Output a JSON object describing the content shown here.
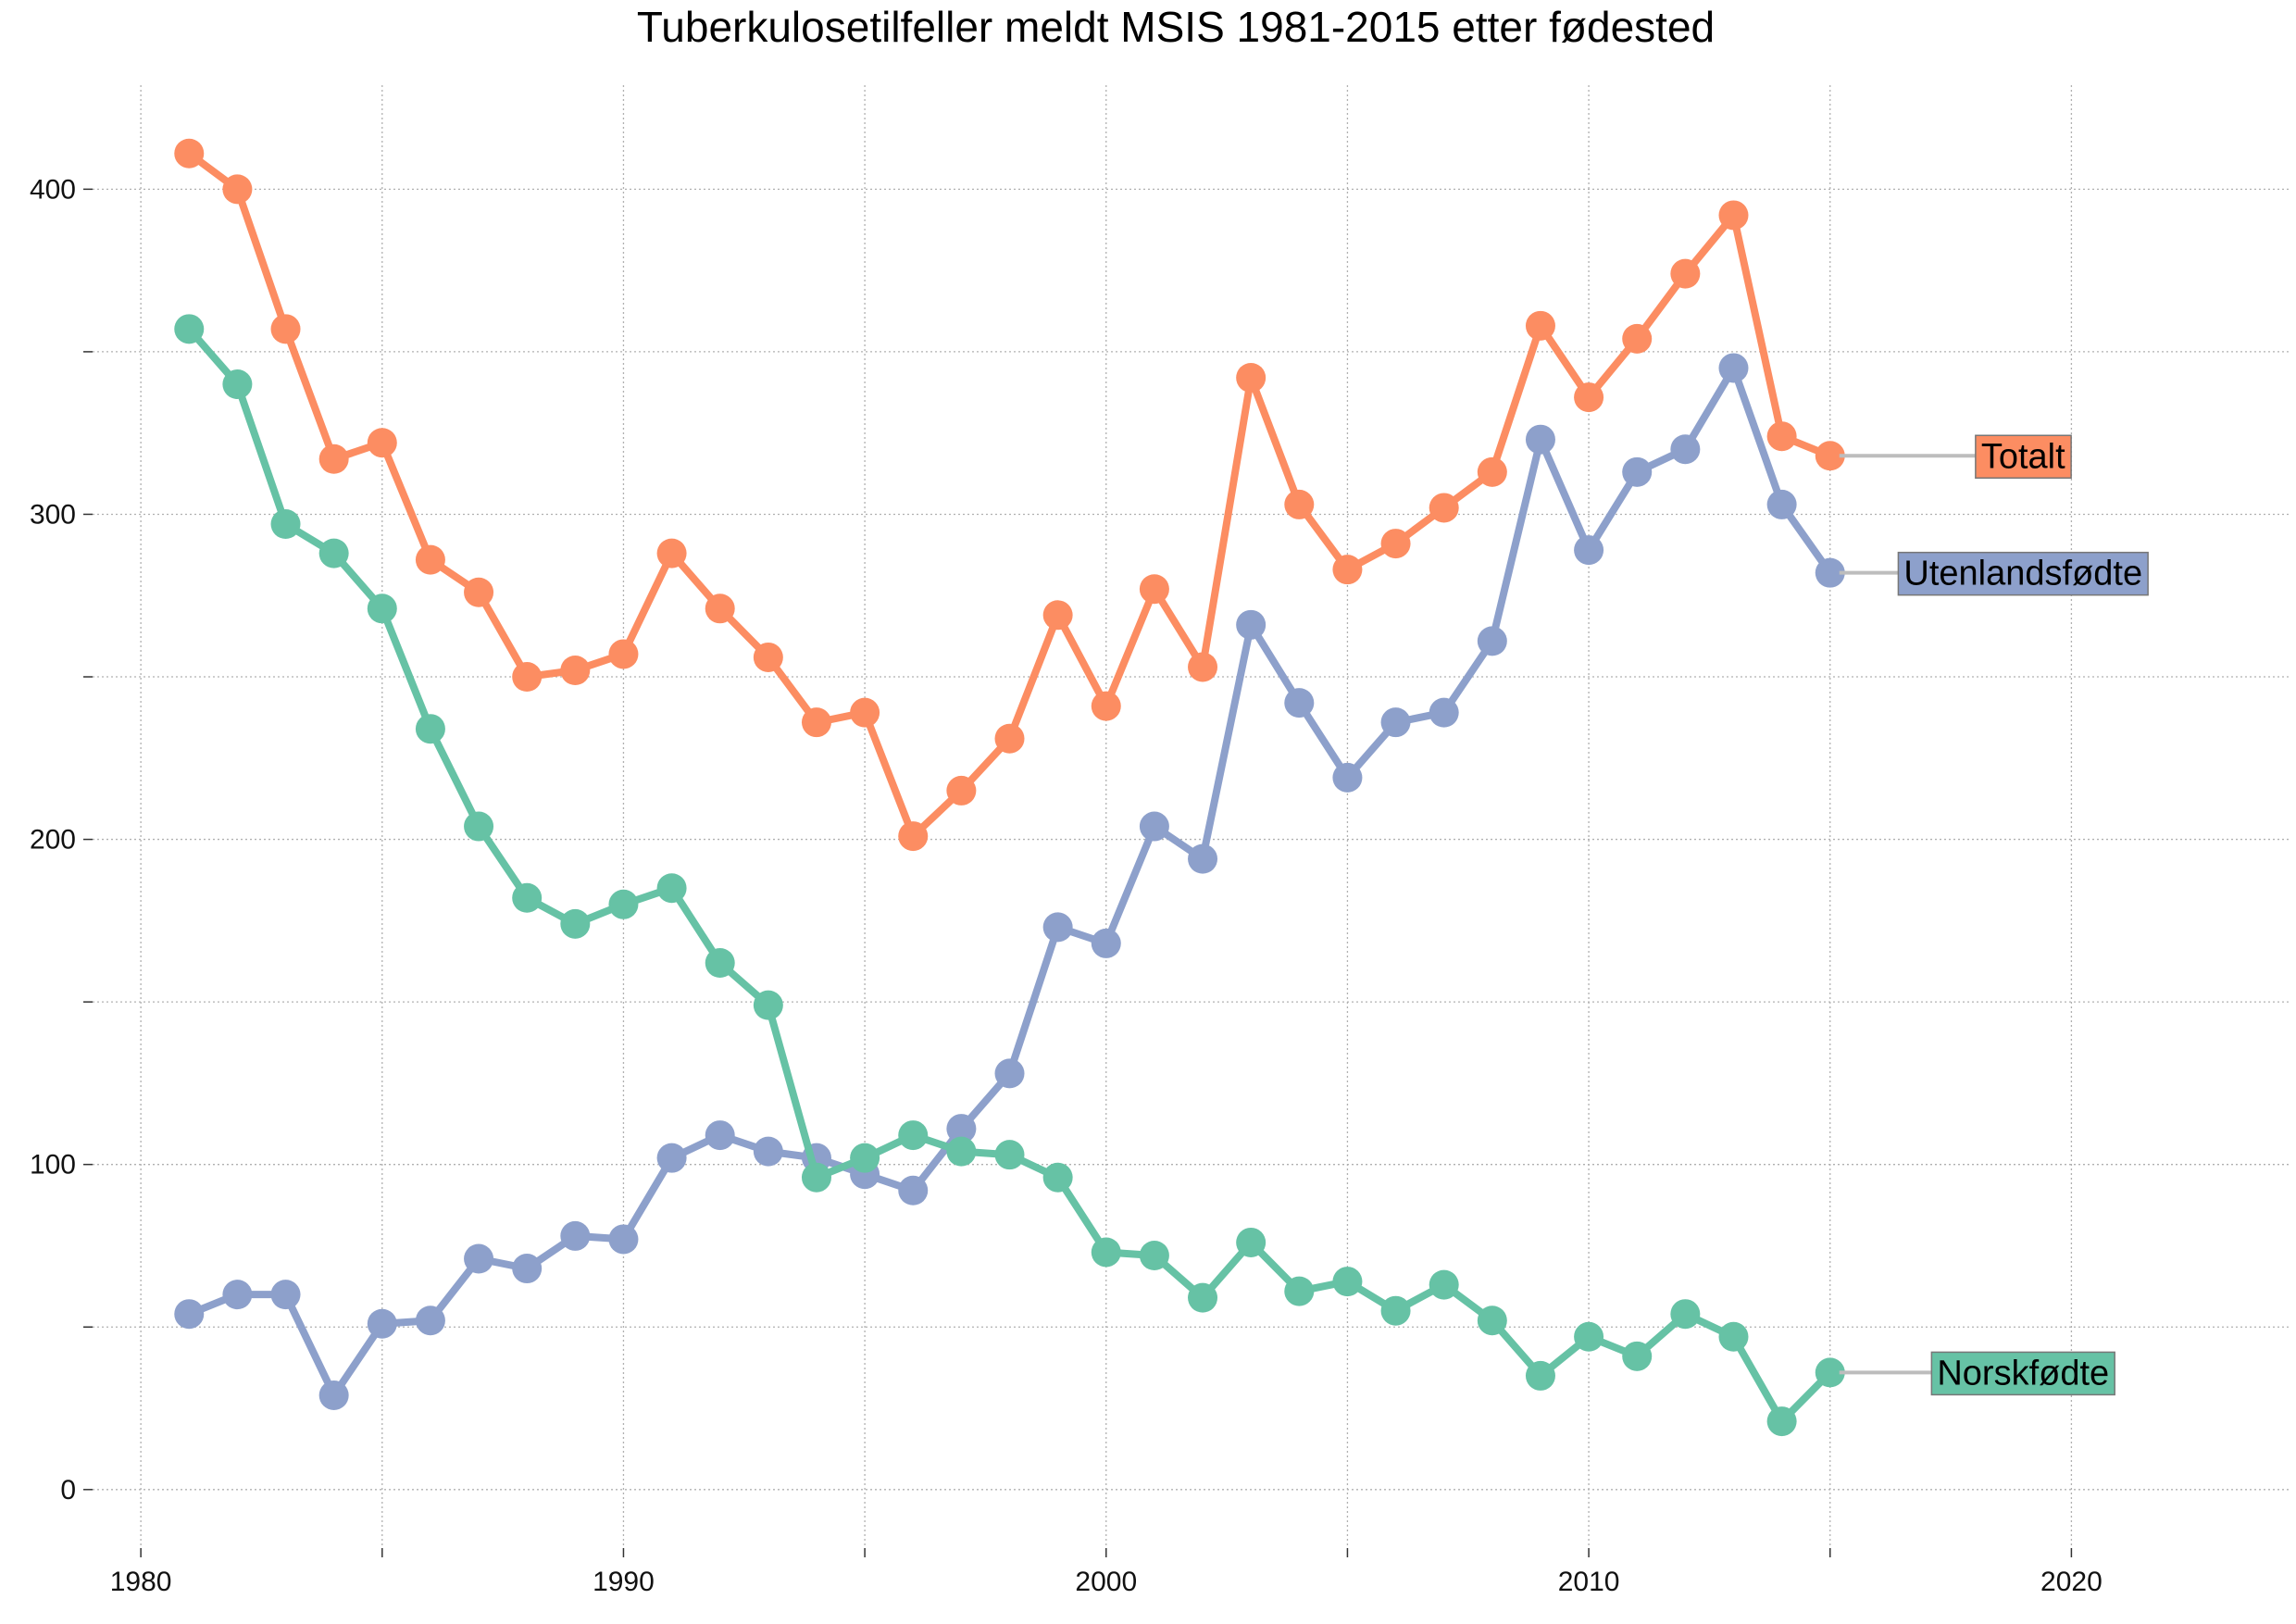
{
  "chart_data": {
    "type": "line",
    "title": "Tuberkulosetilfeller meldt MSIS 1981-2015 etter fødested",
    "xlabel": "",
    "ylabel": "",
    "xlim": [
      1979,
      2024.5
    ],
    "ylim": [
      -18,
      432
    ],
    "x_ticks": [
      1980,
      1990,
      2000,
      2010,
      2020
    ],
    "y_ticks": [
      0,
      100,
      200,
      300,
      400
    ],
    "grid": true,
    "legend": "direct labels at right end of each line",
    "x": [
      1981,
      1982,
      1983,
      1984,
      1985,
      1986,
      1987,
      1988,
      1989,
      1990,
      1991,
      1992,
      1993,
      1994,
      1995,
      1996,
      1997,
      1998,
      1999,
      2000,
      2001,
      2002,
      2003,
      2004,
      2005,
      2006,
      2007,
      2008,
      2009,
      2010,
      2011,
      2012,
      2013,
      2014,
      2015
    ],
    "series": [
      {
        "name": "Totalt",
        "color": "#fc8d62",
        "values": [
          411,
          400,
          357,
          317,
          322,
          286,
          276,
          250,
          252,
          257,
          288,
          271,
          256,
          236,
          239,
          201,
          215,
          231,
          269,
          241,
          277,
          253,
          342,
          303,
          283,
          291,
          302,
          313,
          358,
          336,
          354,
          374,
          392,
          324,
          318
        ]
      },
      {
        "name": "Utenlandsfødte",
        "color": "#8da0cb",
        "values": [
          54,
          60,
          60,
          29,
          51,
          52,
          71,
          68,
          78,
          77,
          102,
          109,
          104,
          102,
          97,
          92,
          111,
          128,
          173,
          168,
          204,
          194,
          266,
          242,
          219,
          236,
          239,
          261,
          323,
          289,
          313,
          320,
          345,
          303,
          282
        ]
      },
      {
        "name": "Norskfødte",
        "color": "#66c2a5",
        "values": [
          357,
          340,
          297,
          288,
          271,
          234,
          204,
          182,
          174,
          180,
          185,
          162,
          149,
          96,
          102,
          109,
          104,
          103,
          96,
          73,
          72,
          59,
          76,
          61,
          64,
          55,
          63,
          52,
          35,
          47,
          41,
          54,
          47,
          21,
          36
        ]
      }
    ],
    "label_x": [
      2019,
      2019,
      2019
    ]
  }
}
